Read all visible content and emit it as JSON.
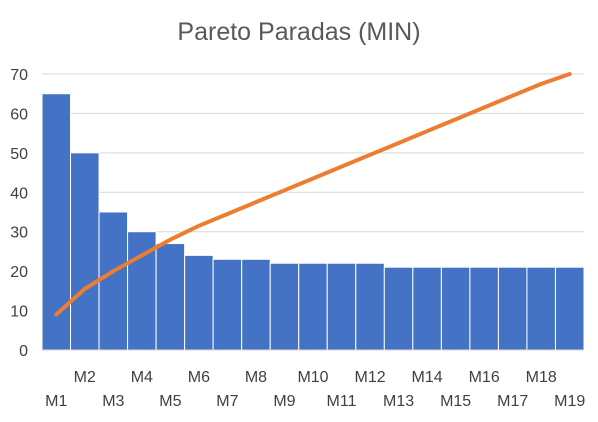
{
  "chart_data": {
    "type": "bar",
    "title": "Pareto Paradas (MIN)",
    "xlabel": "",
    "ylabel": "",
    "ylim": [
      0,
      70
    ],
    "yticks": [
      0,
      10,
      20,
      30,
      40,
      50,
      60,
      70
    ],
    "grid": true,
    "legend": "none",
    "categories": [
      "M1",
      "M2",
      "M3",
      "M4",
      "M5",
      "M6",
      "M7",
      "M8",
      "M9",
      "M10",
      "M11",
      "M12",
      "M13",
      "M14",
      "M15",
      "M16",
      "M17",
      "M18",
      "M19"
    ],
    "series": [
      {
        "type": "bar",
        "color": "#4472C4",
        "values": [
          65,
          50,
          35,
          30,
          27,
          24,
          23,
          23,
          22,
          22,
          22,
          22,
          21,
          21,
          21,
          21,
          21,
          21,
          21
        ]
      },
      {
        "type": "line",
        "color": "#ED7D31",
        "values": [
          9,
          15.5,
          20,
          24,
          28,
          31.5,
          34.5,
          37.5,
          40.5,
          43.5,
          46.5,
          49.5,
          52.5,
          55.5,
          58.5,
          61.5,
          64.5,
          67.5,
          70
        ]
      }
    ]
  }
}
